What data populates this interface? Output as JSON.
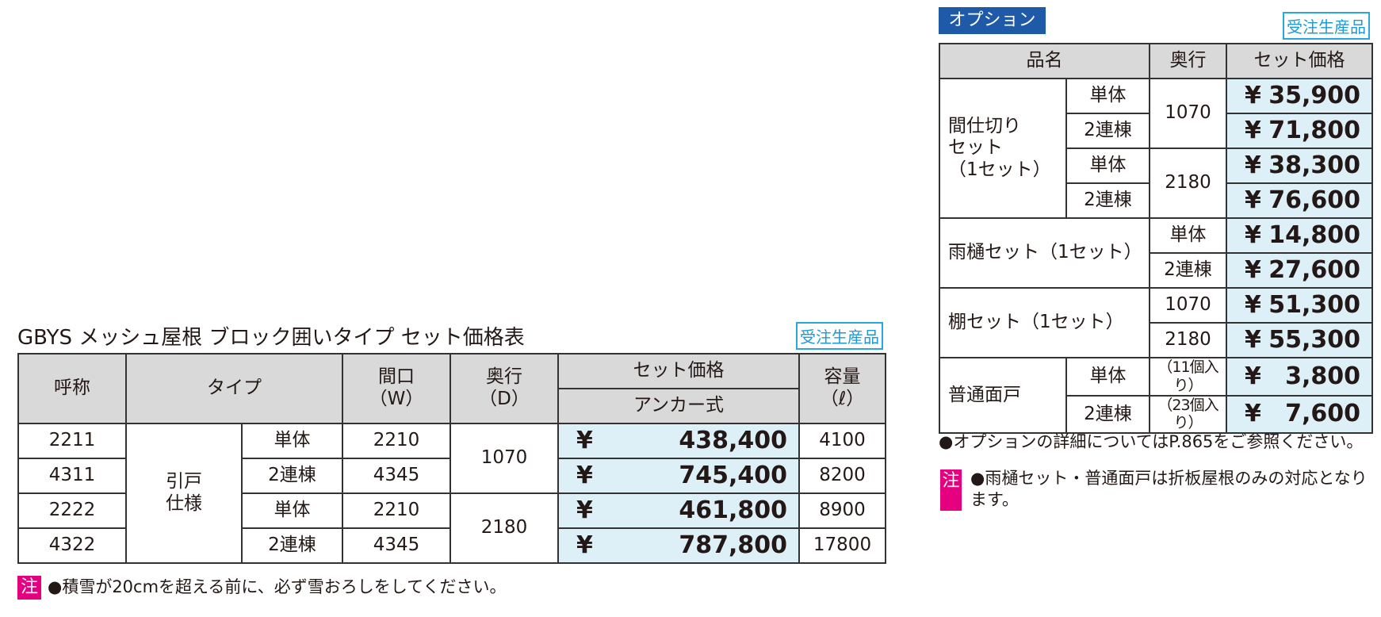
{
  "main": {
    "title": "GBYS メッシュ屋根 ブロック囲いタイプ セット価格表",
    "badge": "受注生産品",
    "headers": {
      "code": "呼称",
      "type": "タイプ",
      "width": "間口\n（W）",
      "depth": "奥行\n（D）",
      "price": "セット価格",
      "anchor": "アンカー式",
      "capacity": "容量\n（ℓ）"
    },
    "type_group": "引戸\n仕様",
    "currency": "¥",
    "depth_groups": [
      "1070",
      "2180"
    ],
    "rows": [
      {
        "code": "2211",
        "variant": "単体",
        "width": "2210",
        "price": "438,400",
        "capacity": "4100"
      },
      {
        "code": "4311",
        "variant": "2連棟",
        "width": "4345",
        "price": "745,400",
        "capacity": "8200"
      },
      {
        "code": "2222",
        "variant": "単体",
        "width": "2210",
        "price": "461,800",
        "capacity": "8900"
      },
      {
        "code": "4322",
        "variant": "2連棟",
        "width": "4345",
        "price": "787,800",
        "capacity": "17800"
      }
    ],
    "note_mark": "注",
    "note": "●積雪が20cmを超える前に、必ず雪おろしをしてください。"
  },
  "option": {
    "tab": "オプション",
    "badge": "受注生産品",
    "headers": {
      "name": "品名",
      "depth": "奥行",
      "price": "セット価格"
    },
    "currency": "¥",
    "partition": {
      "name": "間仕切り\nセット\n（1セット）",
      "single": "単体",
      "double": "2連棟",
      "depths": [
        "1070",
        "2180"
      ],
      "prices": [
        "35,900",
        "71,800",
        "38,300",
        "76,600"
      ]
    },
    "gutter": {
      "name": "雨樋セット（1セット）",
      "single": "単体",
      "double": "2連棟",
      "prices": [
        "14,800",
        "27,600"
      ]
    },
    "shelf": {
      "name": "棚セット（1セット）",
      "depths": [
        "1070",
        "2180"
      ],
      "prices": [
        "51,300",
        "55,300"
      ]
    },
    "door": {
      "name": "普通面戸",
      "single": "単体",
      "double": "2連棟",
      "counts": [
        "（11個入り）",
        "（23個入り）"
      ],
      "prices": [
        "3,800",
        "7,600"
      ]
    },
    "note1": "●オプションの詳細についてはP.865をご参照ください。",
    "note_mark": "注",
    "note2": "●雨樋セット・普通面戸は折板屋根のみの対応となり\nます。"
  }
}
